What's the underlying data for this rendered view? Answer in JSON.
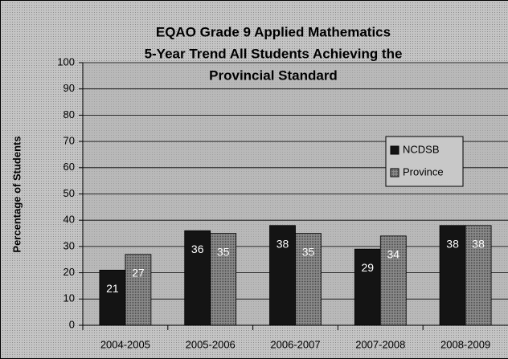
{
  "chart_data": {
    "type": "bar",
    "title": [
      "EQAO Grade 9 Applied Mathematics",
      "5-Year Trend All Students Achieving the",
      "Provincial Standard"
    ],
    "y_label": "Percentage of Students",
    "categories": [
      "2004-2005",
      "2005-2006",
      "2006-2007",
      "2007-2008",
      "2008-2009"
    ],
    "series": [
      {
        "name": "NCDSB",
        "color": "#141414",
        "values": [
          21,
          36,
          38,
          29,
          38
        ]
      },
      {
        "name": "Province",
        "color": "#7a7a7a",
        "values": [
          27,
          35,
          35,
          34,
          38
        ]
      }
    ],
    "ylim": [
      0,
      100
    ],
    "yticks": [
      0,
      10,
      20,
      30,
      40,
      50,
      60,
      70,
      80,
      90,
      100
    ],
    "grid": true,
    "legend": "right"
  }
}
